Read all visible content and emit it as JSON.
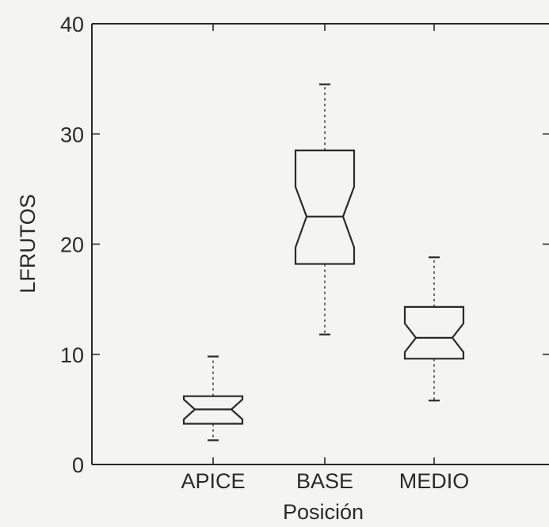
{
  "chart_data": {
    "type": "boxplot",
    "notched": true,
    "xlabel": "Posición",
    "ylabel": "LFRUTOS",
    "ylim": [
      0,
      40
    ],
    "yticks": [
      "0",
      "10",
      "20",
      "30",
      "40"
    ],
    "categories": [
      "APICE",
      "BASE",
      "MEDIO"
    ],
    "boxes": [
      {
        "category": "APICE",
        "min": 2.2,
        "q1": 3.7,
        "median": 5.0,
        "q3": 6.2,
        "max": 9.8,
        "notch_low": 4.1,
        "notch_high": 5.9
      },
      {
        "category": "BASE",
        "min": 11.8,
        "q1": 18.2,
        "median": 22.5,
        "q3": 28.5,
        "max": 34.5,
        "notch_low": 19.7,
        "notch_high": 25.2
      },
      {
        "category": "MEDIO",
        "min": 5.8,
        "q1": 9.6,
        "median": 11.5,
        "q3": 14.3,
        "max": 18.8,
        "notch_low": 10.2,
        "notch_high": 12.8
      }
    ]
  }
}
